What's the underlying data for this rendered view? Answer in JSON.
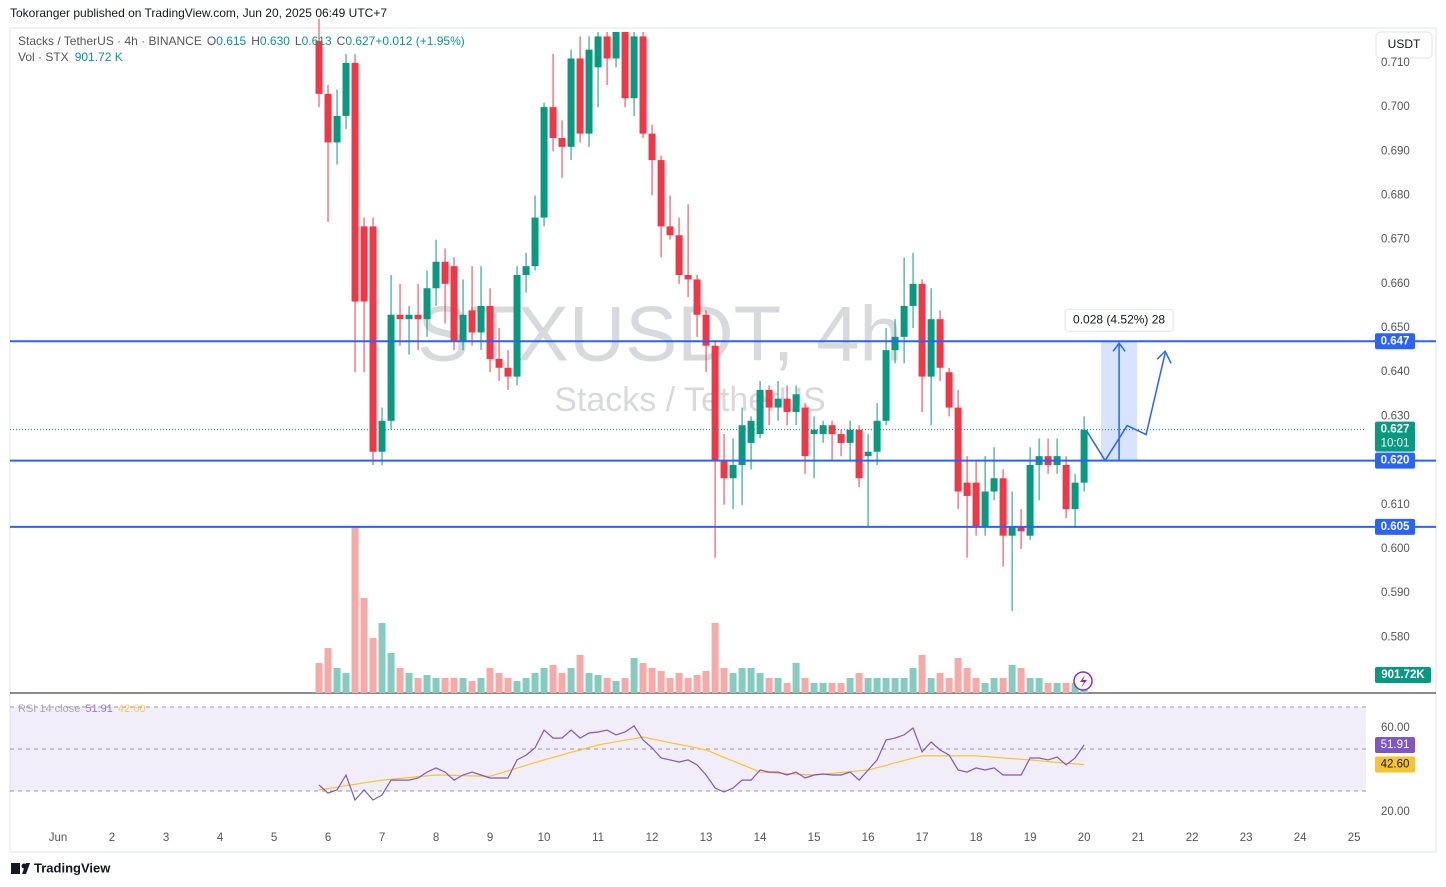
{
  "header": "Tokoranger published on TradingView.com, Jun 20, 2025 06:49 UTC+7",
  "footer": "TradingView",
  "currency_button": "USDT",
  "chart_data": {
    "type": "candlestick",
    "legend": {
      "symbol": "Stacks / TetherUS · 4h · BINANCE",
      "items": [
        {
          "key": "O",
          "value": "0.615"
        },
        {
          "key": "H",
          "value": "0.630"
        },
        {
          "key": "L",
          "value": "0.613"
        },
        {
          "key": "C",
          "value": "0.627"
        },
        {
          "key": "",
          "value": "+0.012 (+1.95%)"
        }
      ],
      "volume_key": "Vol · STX",
      "volume_value": "901.72 K"
    },
    "watermark": [
      "STXUSDT, 4h",
      "Stacks / TetherUS"
    ],
    "up_color": "#089981",
    "down_color": "#f23645",
    "x": [
      5.833,
      6.0,
      6.167,
      6.333,
      6.5,
      6.667,
      6.833,
      7.0,
      7.167,
      7.333,
      7.5,
      7.667,
      7.833,
      8.0,
      8.167,
      8.333,
      8.5,
      8.667,
      8.833,
      9.0,
      9.167,
      9.333,
      9.5,
      9.667,
      9.833,
      10.0,
      10.167,
      10.333,
      10.5,
      10.667,
      10.833,
      11.0,
      11.167,
      11.333,
      11.5,
      11.667,
      11.833,
      12.0,
      12.167,
      12.333,
      12.5,
      12.667,
      12.833,
      13.0,
      13.167,
      13.333,
      13.5,
      13.667,
      13.833,
      14.0,
      14.167,
      14.333,
      14.5,
      14.667,
      14.833,
      15.0,
      15.167,
      15.333,
      15.5,
      15.667,
      15.833,
      16.0,
      16.167,
      16.333,
      16.5,
      16.667,
      16.833,
      17.0,
      17.167,
      17.333,
      17.5,
      17.667,
      17.833,
      18.0,
      18.167,
      18.333,
      18.5,
      18.667,
      18.833,
      19.0,
      19.167,
      19.333,
      19.5,
      19.667,
      19.833,
      20.0
    ],
    "open": [
      0.715,
      0.703,
      0.692,
      0.698,
      0.71,
      0.673,
      0.673,
      0.622,
      0.629,
      0.653,
      0.652,
      0.653,
      0.652,
      0.659,
      0.665,
      0.664,
      0.647,
      0.654,
      0.649,
      0.655,
      0.643,
      0.641,
      0.639,
      0.662,
      0.664,
      0.675,
      0.7,
      0.693,
      0.691,
      0.711,
      0.694,
      0.709,
      0.716,
      0.711,
      0.717,
      0.702,
      0.716,
      0.694,
      0.688,
      0.673,
      0.671,
      0.662,
      0.661,
      0.653,
      0.646,
      0.62,
      0.616,
      0.619,
      0.624,
      0.626,
      0.636,
      0.632,
      0.634,
      0.631,
      0.632,
      0.626,
      0.626,
      0.628,
      0.626,
      0.624,
      0.627,
      0.621,
      0.622,
      0.629,
      0.645,
      0.648,
      0.655,
      0.66,
      0.639,
      0.652,
      0.64,
      0.632,
      0.615,
      0.615,
      0.605,
      0.613,
      0.616,
      0.603,
      0.605,
      0.603,
      0.619,
      0.621,
      0.619,
      0.619,
      0.609,
      0.615
    ],
    "high": [
      0.72,
      0.705,
      0.704,
      0.712,
      0.712,
      0.675,
      0.675,
      0.632,
      0.662,
      0.66,
      0.655,
      0.66,
      0.663,
      0.67,
      0.668,
      0.666,
      0.661,
      0.664,
      0.664,
      0.659,
      0.65,
      0.645,
      0.664,
      0.667,
      0.68,
      0.701,
      0.712,
      0.697,
      0.713,
      0.716,
      0.716,
      0.717,
      0.717,
      0.717,
      0.717,
      0.717,
      0.717,
      0.696,
      0.689,
      0.68,
      0.675,
      0.678,
      0.662,
      0.654,
      0.647,
      0.626,
      0.625,
      0.632,
      0.63,
      0.638,
      0.637,
      0.638,
      0.637,
      0.637,
      0.633,
      0.63,
      0.629,
      0.629,
      0.627,
      0.629,
      0.628,
      0.626,
      0.633,
      0.65,
      0.652,
      0.666,
      0.667,
      0.661,
      0.659,
      0.654,
      0.641,
      0.636,
      0.621,
      0.62,
      0.621,
      0.623,
      0.618,
      0.613,
      0.609,
      0.623,
      0.625,
      0.625,
      0.625,
      0.621,
      0.617,
      0.63
    ],
    "low": [
      0.7,
      0.674,
      0.687,
      0.695,
      0.64,
      0.64,
      0.619,
      0.619,
      0.627,
      0.646,
      0.644,
      0.645,
      0.648,
      0.655,
      0.651,
      0.645,
      0.645,
      0.646,
      0.645,
      0.64,
      0.638,
      0.636,
      0.637,
      0.658,
      0.663,
      0.673,
      0.69,
      0.684,
      0.688,
      0.692,
      0.691,
      0.7,
      0.705,
      0.709,
      0.7,
      0.698,
      0.693,
      0.68,
      0.666,
      0.67,
      0.66,
      0.657,
      0.648,
      0.64,
      0.598,
      0.61,
      0.609,
      0.61,
      0.618,
      0.625,
      0.628,
      0.629,
      0.628,
      0.628,
      0.617,
      0.616,
      0.624,
      0.62,
      0.621,
      0.62,
      0.614,
      0.605,
      0.619,
      0.628,
      0.642,
      0.642,
      0.65,
      0.631,
      0.628,
      0.638,
      0.63,
      0.609,
      0.598,
      0.603,
      0.603,
      0.611,
      0.596,
      0.586,
      0.6,
      0.602,
      0.611,
      0.617,
      0.617,
      0.607,
      0.605,
      0.613
    ],
    "close": [
      0.703,
      0.692,
      0.698,
      0.71,
      0.656,
      0.656,
      0.622,
      0.629,
      0.653,
      0.652,
      0.653,
      0.652,
      0.659,
      0.665,
      0.66,
      0.647,
      0.653,
      0.649,
      0.655,
      0.643,
      0.641,
      0.639,
      0.662,
      0.664,
      0.675,
      0.7,
      0.693,
      0.691,
      0.711,
      0.694,
      0.713,
      0.716,
      0.711,
      0.717,
      0.702,
      0.716,
      0.694,
      0.688,
      0.673,
      0.671,
      0.662,
      0.661,
      0.653,
      0.646,
      0.62,
      0.616,
      0.619,
      0.628,
      0.629,
      0.636,
      0.632,
      0.634,
      0.631,
      0.635,
      0.621,
      0.627,
      0.628,
      0.626,
      0.624,
      0.627,
      0.616,
      0.622,
      0.629,
      0.645,
      0.648,
      0.655,
      0.66,
      0.639,
      0.652,
      0.641,
      0.632,
      0.613,
      0.612,
      0.605,
      0.613,
      0.616,
      0.603,
      0.605,
      0.604,
      0.619,
      0.621,
      0.619,
      0.621,
      0.609,
      0.615,
      0.627
    ],
    "volume": {
      "up_color": "#84ccc0",
      "down_color": "#f7a9a7",
      "label_color": "#089981",
      "values": [
        2250,
        3375,
        1875,
        1500,
        12450,
        7125,
        4125,
        5250,
        3000,
        1875,
        1500,
        1125,
        1350,
        1125,
        1125,
        1125,
        1125,
        900,
        1125,
        1875,
        1500,
        1125,
        900,
        1125,
        1500,
        1875,
        2100,
        1500,
        1875,
        2850,
        1500,
        1350,
        1125,
        900,
        1125,
        2625,
        2250,
        1875,
        1650,
        1125,
        1500,
        1125,
        1350,
        1650,
        5250,
        1875,
        1500,
        1875,
        1875,
        1500,
        1125,
        1125,
        750,
        2250,
        1125,
        750,
        750,
        750,
        750,
        1125,
        1500,
        1125,
        1125,
        1125,
        1125,
        1125,
        1875,
        2850,
        1125,
        1500,
        1125,
        2625,
        1875,
        1125,
        750,
        1125,
        1125,
        2100,
        1875,
        1125,
        1125,
        750,
        750,
        750,
        750,
        901.72
      ],
      "last_label": "901.72K"
    },
    "xlim": [
      0.111,
      25.22
    ],
    "xticks": [
      {
        "value": 1,
        "label": "Jun"
      },
      2,
      3,
      4,
      5,
      6,
      7,
      8,
      9,
      10,
      11,
      12,
      13,
      14,
      15,
      16,
      17,
      18,
      19,
      20,
      21,
      22,
      23,
      24,
      25
    ],
    "ylim": [
      0.5674,
      0.7179
    ],
    "yticks": [
      {
        "value": 0.58,
        "label": "0.580"
      },
      {
        "value": 0.59,
        "label": "0.590"
      },
      {
        "value": 0.6,
        "label": "0.600"
      },
      {
        "value": 0.61,
        "label": "0.610"
      },
      {
        "value": 0.62,
        "label": "0.620"
      },
      {
        "value": 0.63,
        "label": "0.630"
      },
      {
        "value": 0.64,
        "label": "0.640"
      },
      {
        "value": 0.65,
        "label": "0.650"
      },
      {
        "value": 0.66,
        "label": "0.660"
      },
      {
        "value": 0.67,
        "label": "0.670"
      },
      {
        "value": 0.68,
        "label": "0.680"
      },
      {
        "value": 0.69,
        "label": "0.690"
      },
      {
        "value": 0.7,
        "label": "0.700"
      },
      {
        "value": 0.71,
        "label": "0.710"
      }
    ],
    "grid": false,
    "levels": [
      {
        "value": 0.647,
        "label": "0.647"
      },
      {
        "value": 0.62,
        "label": "0.620"
      },
      {
        "value": 0.605,
        "label": "0.605"
      }
    ],
    "level_color": "#2962ff",
    "countdown": "10:01",
    "measure": {
      "from": 0.62,
      "to": 0.647,
      "x_from": 20.315,
      "x_to": 20.981,
      "label": "0.028 (4.52%) 28"
    },
    "rsi": {
      "title": "RSI 14 close",
      "color": "#7e57c2",
      "ma_color": "#f7c52b",
      "values": [
        32.9,
        29.0,
        30.5,
        37.6,
        25.7,
        30.5,
        25.7,
        28.1,
        35.2,
        35.2,
        35.2,
        36.2,
        39.0,
        41.0,
        39.0,
        35.2,
        37.6,
        39.0,
        37.6,
        36.2,
        36.2,
        36.2,
        44.8,
        47.1,
        50.5,
        59.0,
        55.2,
        55.2,
        59.0,
        55.2,
        57.6,
        58.1,
        59.0,
        56.7,
        58.1,
        61.0,
        54.3,
        50.5,
        45.7,
        44.8,
        43.8,
        44.8,
        42.4,
        37.6,
        31.4,
        29.5,
        31.4,
        35.2,
        35.2,
        40.0,
        39.0,
        39.0,
        37.6,
        39.0,
        36.2,
        37.6,
        38.1,
        37.6,
        37.6,
        39.0,
        35.2,
        40.0,
        44.8,
        54.3,
        55.2,
        56.7,
        60.0,
        48.6,
        53.3,
        49.5,
        47.1,
        40.0,
        39.0,
        41.0,
        40.0,
        41.0,
        37.6,
        37.6,
        37.6,
        45.7,
        45.7,
        44.8,
        46.2,
        42.4,
        45.7,
        51.91
      ],
      "ma_values": [
        30.5,
        31.2,
        31.8,
        32.5,
        33.2,
        33.9,
        34.5,
        35.2,
        35.6,
        36.0,
        36.4,
        36.8,
        37.2,
        37.6,
        37.5,
        37.4,
        37.3,
        37.2,
        37.1,
        37.0,
        38.3,
        39.6,
        40.9,
        42.2,
        43.5,
        44.8,
        46.0,
        47.2,
        48.4,
        49.5,
        50.7,
        51.9,
        52.7,
        53.4,
        54.2,
        54.9,
        55.7,
        54.8,
        53.9,
        53.0,
        52.2,
        51.3,
        50.4,
        49.5,
        47.8,
        46.0,
        44.3,
        42.5,
        40.8,
        39.0,
        38.8,
        38.5,
        38.3,
        38.1,
        37.8,
        37.6,
        38.0,
        38.4,
        38.8,
        39.2,
        39.6,
        40.0,
        41.1,
        42.2,
        43.4,
        44.5,
        45.6,
        46.7,
        46.7,
        46.7,
        46.7,
        46.7,
        46.7,
        46.7,
        46.4,
        46.1,
        45.7,
        45.4,
        45.1,
        44.8,
        44.4,
        44.0,
        43.6,
        43.2,
        42.9,
        42.6
      ],
      "ma_last_label": "42.60",
      "ylim": [
        0.95,
        75.7
      ],
      "yticks": [
        {
          "value": 60,
          "label": "60.00"
        },
        {
          "value": 20,
          "label": "20.00"
        }
      ],
      "bands": [
        30,
        70
      ],
      "mid": 50
    }
  }
}
